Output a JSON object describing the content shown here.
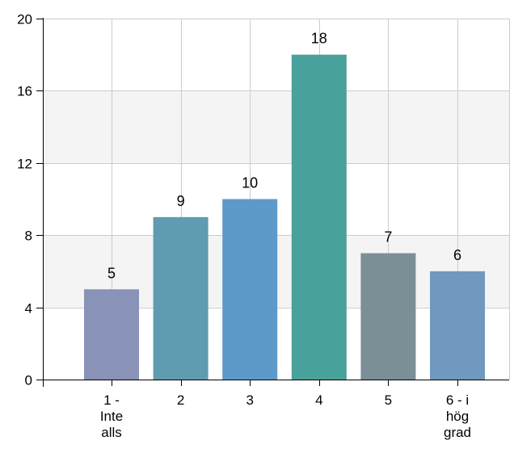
{
  "chart_data": {
    "type": "bar",
    "title": "",
    "xlabel": "",
    "ylabel": "",
    "categories": [
      [
        "1 -",
        "Inte",
        "alls"
      ],
      [
        "2"
      ],
      [
        "3"
      ],
      [
        "4"
      ],
      [
        "5"
      ],
      [
        "6 - i",
        "hög",
        "grad"
      ]
    ],
    "values": [
      5,
      9,
      10,
      18,
      7,
      6
    ],
    "ylim": [
      0,
      20
    ],
    "yticks": [
      0,
      4,
      8,
      12,
      16,
      20
    ],
    "grid": true,
    "bar_colors": [
      "#8893b7",
      "#609bb0",
      "#5e9ac9",
      "#48a19a",
      "#7b8f97",
      "#7199c0"
    ],
    "band_color": "#f4f4f4",
    "grid_color": "#cccccc"
  }
}
